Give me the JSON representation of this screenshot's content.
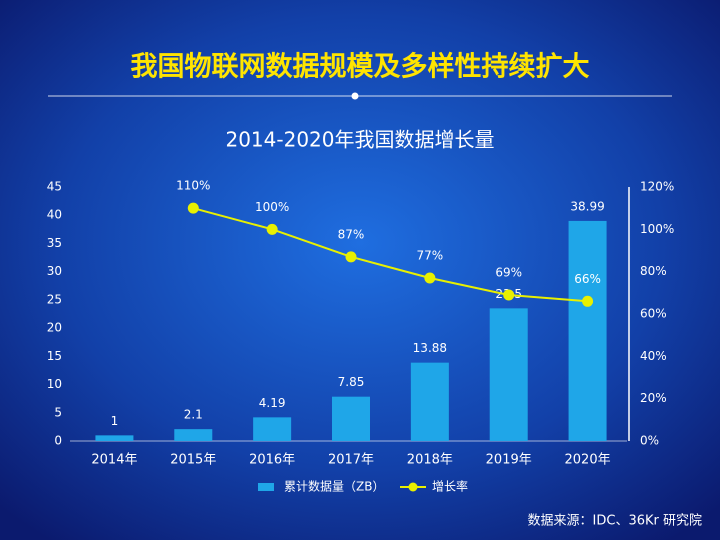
{
  "chart_data": {
    "type": "bar",
    "title": "我国物联网数据规模及多样性持续扩大",
    "subtitle": "2014-2020年我国数据增长量",
    "source": "数据来源：IDC、36Kr 研究院",
    "categories": [
      "2014年",
      "2015年",
      "2016年",
      "2017年",
      "2018年",
      "2019年",
      "2020年"
    ],
    "series": [
      {
        "name": "累计数据量（ZB）",
        "type": "bar",
        "color": "#1fa6e8",
        "axis": "y",
        "values": [
          1,
          2.1,
          4.19,
          7.85,
          13.88,
          23.5,
          38.99
        ]
      },
      {
        "name": "增长率",
        "type": "line",
        "color": "#e8f000",
        "axis": "y2",
        "values": [
          null,
          110,
          100,
          87,
          77,
          69,
          66
        ],
        "value_labels": [
          null,
          "110%",
          "100%",
          "87%",
          "77%",
          "69%",
          "66%"
        ]
      }
    ],
    "ylim": [
      0,
      45
    ],
    "yticks": [
      0,
      5,
      10,
      15,
      20,
      25,
      30,
      35,
      40,
      45
    ],
    "y2lim": [
      0,
      120
    ],
    "y2ticks": [
      {
        "value": 0,
        "label": "0%"
      },
      {
        "value": 20,
        "label": "20%"
      },
      {
        "value": 40,
        "label": "40%"
      },
      {
        "value": 60,
        "label": "60%"
      },
      {
        "value": 80,
        "label": "80%"
      },
      {
        "value": 100,
        "label": "100%"
      },
      {
        "value": 120,
        "label": "120%"
      }
    ],
    "legend": "bottom"
  }
}
